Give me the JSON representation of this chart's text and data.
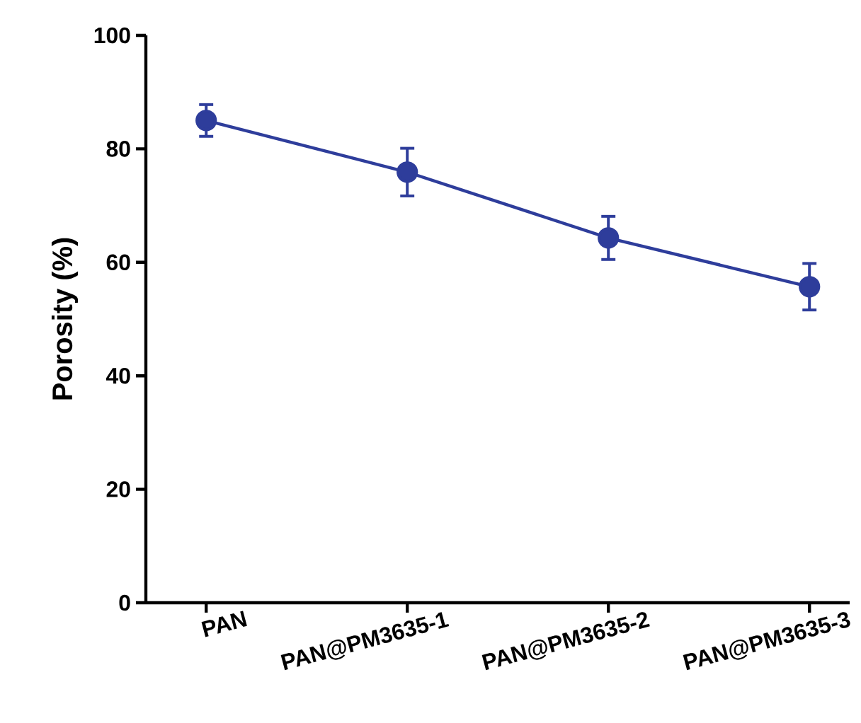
{
  "chart_data": {
    "type": "line",
    "ylabel": "Porosity (%)",
    "categories": [
      "PAN",
      "PAN@PM3635-1",
      "PAN@PM3635-2",
      "PAN@PM3635-3"
    ],
    "values": [
      85.0,
      75.9,
      64.3,
      55.7
    ],
    "errors": [
      2.8,
      4.2,
      3.8,
      4.1
    ],
    "color": "#2e3d9b",
    "marker": "circle",
    "line_style": "solid",
    "ylim": [
      0,
      100
    ],
    "yticks": [
      0,
      20,
      40,
      60,
      80,
      100
    ],
    "grid": false
  }
}
